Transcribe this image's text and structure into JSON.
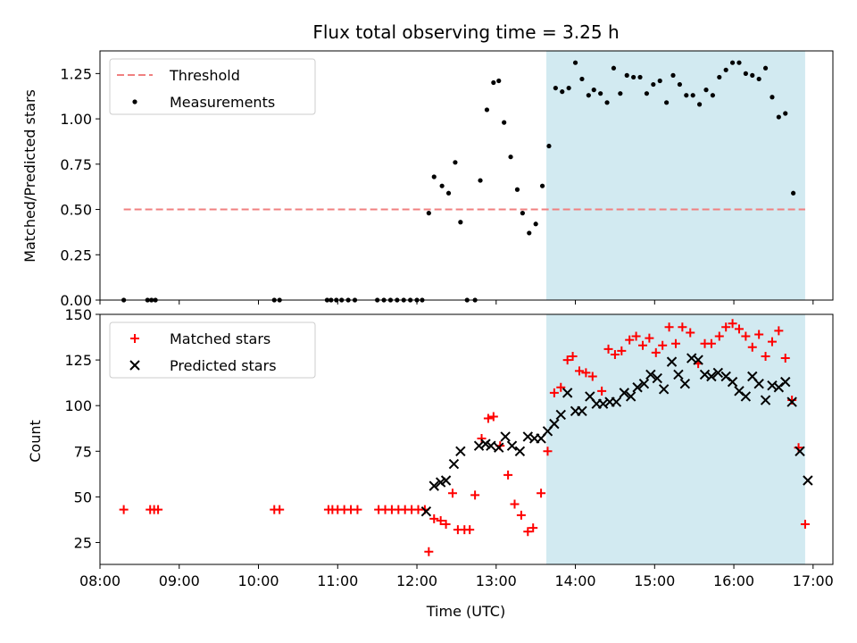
{
  "chart_data": [
    {
      "type": "scatter",
      "title": "Flux total observing time = 3.25 h",
      "ylabel": "Matched/Predicted stars",
      "xlabel": "",
      "xlim": [
        "08:00",
        "17:15"
      ],
      "ylim": [
        0,
        1.375
      ],
      "x_ticks": [
        "08:00",
        "09:00",
        "10:00",
        "11:00",
        "12:00",
        "13:00",
        "14:00",
        "15:00",
        "16:00",
        "17:00"
      ],
      "y_ticks": [
        "0.00",
        "0.25",
        "0.50",
        "0.75",
        "1.00",
        "1.25"
      ],
      "highlight_span": {
        "start": "13:38",
        "end": "16:54",
        "color": "#add8e6"
      },
      "legend": {
        "position": "top-left",
        "entries": [
          "Threshold",
          "Measurements"
        ]
      },
      "threshold": {
        "name": "Threshold",
        "value": 0.5,
        "x_start": "08:18",
        "x_end": "16:54",
        "color": "#f08080"
      },
      "series": [
        {
          "name": "Measurements",
          "color": "#000000",
          "points": [
            [
              "08:18",
              0
            ],
            [
              "08:36",
              0
            ],
            [
              "08:39",
              0
            ],
            [
              "08:42",
              0
            ],
            [
              "10:12",
              0
            ],
            [
              "10:16",
              0
            ],
            [
              "10:52",
              0
            ],
            [
              "10:55",
              0
            ],
            [
              "10:59",
              0
            ],
            [
              "11:03",
              0
            ],
            [
              "11:08",
              0
            ],
            [
              "11:13",
              0
            ],
            [
              "11:30",
              0
            ],
            [
              "11:35",
              0
            ],
            [
              "11:40",
              0
            ],
            [
              "11:45",
              0
            ],
            [
              "11:50",
              0
            ],
            [
              "11:55",
              0
            ],
            [
              "12:00",
              0
            ],
            [
              "12:04",
              0
            ],
            [
              "12:09",
              0.48
            ],
            [
              "12:13",
              0.68
            ],
            [
              "12:19",
              0.63
            ],
            [
              "12:24",
              0.59
            ],
            [
              "12:29",
              0.76
            ],
            [
              "12:33",
              0.43
            ],
            [
              "12:38",
              0
            ],
            [
              "12:44",
              0
            ],
            [
              "12:48",
              0.66
            ],
            [
              "12:53",
              1.05
            ],
            [
              "12:58",
              1.2
            ],
            [
              "13:02",
              1.21
            ],
            [
              "13:06",
              0.98
            ],
            [
              "13:11",
              0.79
            ],
            [
              "13:16",
              0.61
            ],
            [
              "13:20",
              0.48
            ],
            [
              "13:25",
              0.37
            ],
            [
              "13:30",
              0.42
            ],
            [
              "13:35",
              0.63
            ],
            [
              "13:40",
              0.85
            ],
            [
              "13:45",
              1.17
            ],
            [
              "13:50",
              1.15
            ],
            [
              "13:55",
              1.17
            ],
            [
              "14:00",
              1.31
            ],
            [
              "14:05",
              1.22
            ],
            [
              "14:10",
              1.13
            ],
            [
              "14:14",
              1.16
            ],
            [
              "14:19",
              1.14
            ],
            [
              "14:24",
              1.09
            ],
            [
              "14:29",
              1.28
            ],
            [
              "14:34",
              1.14
            ],
            [
              "14:39",
              1.24
            ],
            [
              "14:44",
              1.23
            ],
            [
              "14:49",
              1.23
            ],
            [
              "14:54",
              1.14
            ],
            [
              "14:59",
              1.19
            ],
            [
              "15:04",
              1.21
            ],
            [
              "15:09",
              1.09
            ],
            [
              "15:14",
              1.24
            ],
            [
              "15:19",
              1.19
            ],
            [
              "15:24",
              1.13
            ],
            [
              "15:29",
              1.13
            ],
            [
              "15:34",
              1.08
            ],
            [
              "15:39",
              1.16
            ],
            [
              "15:44",
              1.13
            ],
            [
              "15:49",
              1.23
            ],
            [
              "15:54",
              1.27
            ],
            [
              "15:59",
              1.31
            ],
            [
              "16:04",
              1.31
            ],
            [
              "16:09",
              1.25
            ],
            [
              "16:14",
              1.24
            ],
            [
              "16:19",
              1.22
            ],
            [
              "16:24",
              1.28
            ],
            [
              "16:29",
              1.12
            ],
            [
              "16:34",
              1.01
            ],
            [
              "16:39",
              1.03
            ],
            [
              "16:45",
              0.59
            ]
          ]
        }
      ]
    },
    {
      "type": "scatter",
      "title": "",
      "ylabel": "Count",
      "xlabel": "Time (UTC)",
      "xlim": [
        "08:00",
        "17:15"
      ],
      "ylim": [
        13,
        150
      ],
      "x_ticks": [
        "08:00",
        "09:00",
        "10:00",
        "11:00",
        "12:00",
        "13:00",
        "14:00",
        "15:00",
        "16:00",
        "17:00"
      ],
      "y_ticks": [
        "25",
        "50",
        "75",
        "100",
        "125",
        "150"
      ],
      "highlight_span": {
        "start": "13:38",
        "end": "16:54",
        "color": "#add8e6"
      },
      "legend": {
        "position": "top-left",
        "entries": [
          "Matched stars",
          "Predicted stars"
        ]
      },
      "series": [
        {
          "name": "Matched stars",
          "marker": "plus",
          "color": "#ff0000",
          "points": [
            [
              "08:18",
              43
            ],
            [
              "08:38",
              43
            ],
            [
              "08:41",
              43
            ],
            [
              "08:44",
              43
            ],
            [
              "10:12",
              43
            ],
            [
              "10:16",
              43
            ],
            [
              "10:53",
              43
            ],
            [
              "10:56",
              43
            ],
            [
              "11:00",
              43
            ],
            [
              "11:05",
              43
            ],
            [
              "11:10",
              43
            ],
            [
              "11:15",
              43
            ],
            [
              "11:31",
              43
            ],
            [
              "11:36",
              43
            ],
            [
              "11:41",
              43
            ],
            [
              "11:46",
              43
            ],
            [
              "11:51",
              43
            ],
            [
              "11:56",
              43
            ],
            [
              "12:01",
              43
            ],
            [
              "12:06",
              43
            ],
            [
              "12:09",
              20
            ],
            [
              "12:13",
              38
            ],
            [
              "12:18",
              37
            ],
            [
              "12:22",
              35
            ],
            [
              "12:27",
              52
            ],
            [
              "12:31",
              32
            ],
            [
              "12:36",
              32
            ],
            [
              "12:40",
              32
            ],
            [
              "12:44",
              51
            ],
            [
              "12:49",
              82
            ],
            [
              "12:54",
              93
            ],
            [
              "12:58",
              94
            ],
            [
              "13:03",
              78
            ],
            [
              "13:09",
              62
            ],
            [
              "13:14",
              46
            ],
            [
              "13:19",
              40
            ],
            [
              "13:24",
              31
            ],
            [
              "13:28",
              33
            ],
            [
              "13:34",
              52
            ],
            [
              "13:39",
              75
            ],
            [
              "13:44",
              107
            ],
            [
              "13:49",
              110
            ],
            [
              "13:54",
              125
            ],
            [
              "13:58",
              127
            ],
            [
              "14:03",
              119
            ],
            [
              "14:08",
              118
            ],
            [
              "14:13",
              116
            ],
            [
              "14:20",
              108
            ],
            [
              "14:25",
              131
            ],
            [
              "14:30",
              128
            ],
            [
              "14:35",
              130
            ],
            [
              "14:41",
              136
            ],
            [
              "14:46",
              138
            ],
            [
              "14:51",
              133
            ],
            [
              "14:56",
              137
            ],
            [
              "15:01",
              129
            ],
            [
              "15:06",
              133
            ],
            [
              "15:11",
              143
            ],
            [
              "15:16",
              134
            ],
            [
              "15:21",
              143
            ],
            [
              "15:27",
              140
            ],
            [
              "15:33",
              123
            ],
            [
              "15:38",
              134
            ],
            [
              "15:43",
              134
            ],
            [
              "15:49",
              138
            ],
            [
              "15:54",
              143
            ],
            [
              "15:59",
              145
            ],
            [
              "16:04",
              142
            ],
            [
              "16:09",
              138
            ],
            [
              "16:14",
              132
            ],
            [
              "16:19",
              139
            ],
            [
              "16:24",
              127
            ],
            [
              "16:29",
              135
            ],
            [
              "16:34",
              141
            ],
            [
              "16:39",
              126
            ],
            [
              "16:44",
              103
            ],
            [
              "16:49",
              77
            ],
            [
              "16:54",
              35
            ]
          ]
        },
        {
          "name": "Predicted stars",
          "marker": "x",
          "color": "#000000",
          "points": [
            [
              "12:07",
              42
            ],
            [
              "12:13",
              56
            ],
            [
              "12:18",
              58
            ],
            [
              "12:22",
              59
            ],
            [
              "12:28",
              68
            ],
            [
              "12:33",
              75
            ],
            [
              "12:47",
              78
            ],
            [
              "12:52",
              79
            ],
            [
              "12:56",
              78
            ],
            [
              "13:02",
              77
            ],
            [
              "13:07",
              83
            ],
            [
              "13:12",
              78
            ],
            [
              "13:18",
              75
            ],
            [
              "13:24",
              83
            ],
            [
              "13:29",
              82
            ],
            [
              "13:34",
              82
            ],
            [
              "13:39",
              86
            ],
            [
              "13:44",
              90
            ],
            [
              "13:49",
              95
            ],
            [
              "13:54",
              107
            ],
            [
              "14:00",
              97
            ],
            [
              "14:05",
              97
            ],
            [
              "14:11",
              105
            ],
            [
              "14:16",
              101
            ],
            [
              "14:21",
              101
            ],
            [
              "14:26",
              102
            ],
            [
              "14:31",
              102
            ],
            [
              "14:37",
              107
            ],
            [
              "14:42",
              105
            ],
            [
              "14:47",
              110
            ],
            [
              "14:52",
              112
            ],
            [
              "14:57",
              117
            ],
            [
              "15:02",
              115
            ],
            [
              "15:07",
              109
            ],
            [
              "15:13",
              124
            ],
            [
              "15:18",
              117
            ],
            [
              "15:23",
              112
            ],
            [
              "15:28",
              126
            ],
            [
              "15:33",
              125
            ],
            [
              "15:38",
              117
            ],
            [
              "15:43",
              116
            ],
            [
              "15:48",
              118
            ],
            [
              "15:54",
              116
            ],
            [
              "15:59",
              113
            ],
            [
              "16:04",
              108
            ],
            [
              "16:09",
              105
            ],
            [
              "16:14",
              116
            ],
            [
              "16:19",
              112
            ],
            [
              "16:24",
              103
            ],
            [
              "16:29",
              111
            ],
            [
              "16:34",
              110
            ],
            [
              "16:39",
              113
            ],
            [
              "16:44",
              102
            ],
            [
              "16:50",
              75
            ],
            [
              "16:56",
              59
            ]
          ]
        }
      ]
    }
  ]
}
